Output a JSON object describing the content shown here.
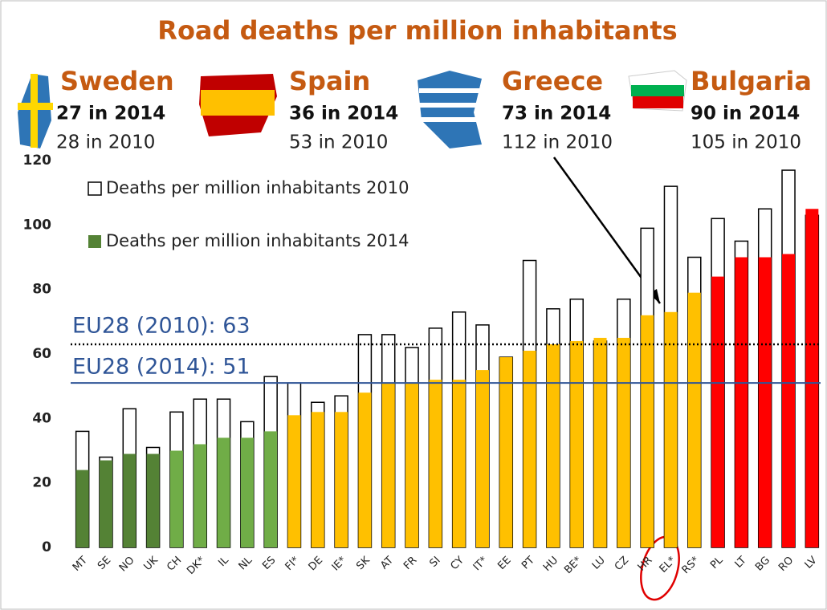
{
  "chart_data": {
    "type": "bar",
    "title": "Road deaths per million inhabitants",
    "highlights": [
      {
        "name": "Sweden",
        "line2014": "27 in 2014",
        "line2010": "28 in 2010"
      },
      {
        "name": "Spain",
        "line2014": "36 in 2014",
        "line2010": "53 in 2010"
      },
      {
        "name": "Greece",
        "line2014": "73 in 2014",
        "line2010": "112 in 2010"
      },
      {
        "name": "Bulgaria",
        "line2014": "90 in 2014",
        "line2010": "105 in 2010"
      }
    ],
    "categories": [
      "MT",
      "SE",
      "NO",
      "UK",
      "CH",
      "DK*",
      "IL",
      "NL",
      "ES",
      "FI*",
      "DE",
      "IE*",
      "SK",
      "AT",
      "FR",
      "SI",
      "CY",
      "IT*",
      "EE",
      "PT",
      "HU",
      "BE*",
      "LU",
      "CZ",
      "HR",
      "EL*",
      "RS*",
      "PL",
      "LT",
      "BG",
      "RO",
      "LV"
    ],
    "series": [
      {
        "name": "Deaths per million inhabitants 2010",
        "color": "#ffffff",
        "values": [
          36,
          28,
          43,
          31,
          42,
          46,
          46,
          39,
          53,
          51,
          45,
          47,
          66,
          66,
          62,
          68,
          73,
          69,
          59,
          89,
          74,
          77,
          64,
          77,
          99,
          112,
          90,
          102,
          95,
          105,
          117,
          103
        ]
      },
      {
        "name": "Deaths per million inhabitants 2014",
        "color": "#548235",
        "colors": [
          "#548235",
          "#548235",
          "#548235",
          "#548235",
          "#70ad47",
          "#70ad47",
          "#70ad47",
          "#70ad47",
          "#70ad47",
          "#ffc000",
          "#ffc000",
          "#ffc000",
          "#ffc000",
          "#ffc000",
          "#ffc000",
          "#ffc000",
          "#ffc000",
          "#ffc000",
          "#ffc000",
          "#ffc000",
          "#ffc000",
          "#ffc000",
          "#ffc000",
          "#ffc000",
          "#ffc000",
          "#ffc000",
          "#ffc000",
          "#ff0000",
          "#ff0000",
          "#ff0000",
          "#ff0000",
          "#ff0000"
        ],
        "values": [
          24,
          27,
          29,
          29,
          30,
          32,
          34,
          34,
          36,
          41,
          42,
          42,
          48,
          51,
          51,
          52,
          52,
          55,
          59,
          61,
          63,
          64,
          65,
          65,
          72,
          73,
          79,
          84,
          90,
          90,
          91,
          105
        ]
      }
    ],
    "reference_lines": [
      {
        "label": "EU28 (2010): 63",
        "value": 63,
        "color": "#000000",
        "style": "dotted"
      },
      {
        "label": "EU28 (2014): 51",
        "value": 51,
        "color": "#2f5597",
        "style": "solid"
      }
    ],
    "ylim": [
      0,
      120
    ],
    "yticks": [
      0,
      20,
      40,
      60,
      80,
      100,
      120
    ],
    "grid": false
  }
}
